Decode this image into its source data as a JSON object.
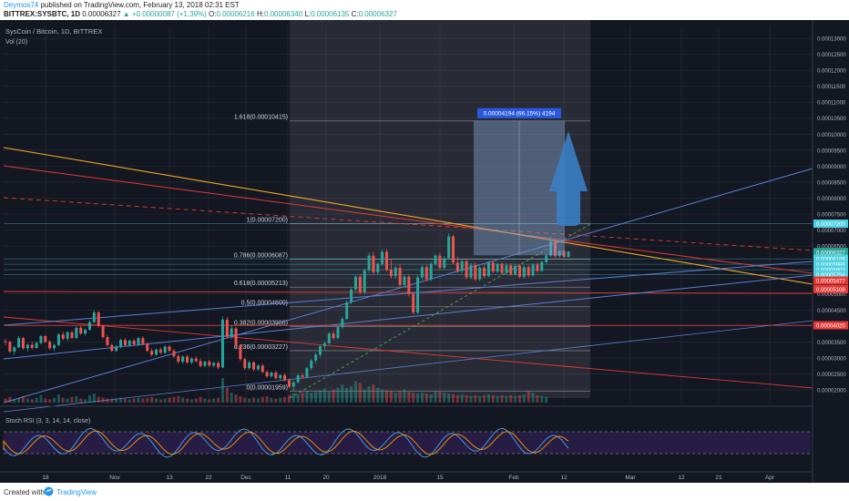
{
  "header": {
    "author": "Deymos74",
    "published": "published on TradingView.com, February 13, 2018 02:31 EST",
    "symbol": "BITTREX:SYSBTC, 1D",
    "last": "0.00006327",
    "change": "+0.00000087 (+1.39%)",
    "o_label": "O:",
    "o": "0.00006216",
    "h_label": "H:",
    "h": "0.00006340",
    "l_label": "L:",
    "l": "0.00006135",
    "c_label": "C:",
    "c": "0.00006327"
  },
  "legend": {
    "title": "SysCoin / Bitcoin, 1D, BITTREX",
    "vol": "Vol (20)",
    "rsi": "Stoch RSI (3, 3, 14, 14, close)"
  },
  "footer": {
    "created": "Created with",
    "brand": "TradingView"
  },
  "colors": {
    "bg": "#131722",
    "up": "#26a69a",
    "down": "#ef5350",
    "grid": "#2a2e39",
    "axis_text": "#b2b5be",
    "fib": "#787b86",
    "trend_red": "#e53935",
    "trend_blue": "#5b7fd6",
    "trend_orange": "#f5a623",
    "cyan": "#4dd0e1",
    "projection": "#7ea0c9",
    "arrow": "#3a7fc5",
    "rsi_fill": "#2c1f4a"
  },
  "chart_data": {
    "type": "candlestick",
    "title": "SysCoin / Bitcoin, 1D, BITTREX",
    "ylim": [
      1.6e-05,
      0.000134
    ],
    "price_ticks": [
      "0.00013000",
      "0.00012500",
      "0.00012000",
      "0.00011500",
      "0.00011000",
      "0.00010500",
      "0.00010000",
      "0.00009500",
      "0.00009000",
      "0.00008500",
      "0.00008000",
      "0.00007500",
      "0.00007000",
      "0.00006500",
      "0.00006000",
      "0.00005500",
      "0.00005000",
      "0.00004500",
      "0.00004000",
      "0.00003500",
      "0.00003000",
      "0.00002500",
      "0.00002000"
    ],
    "price_badges": [
      {
        "label": "0.00007200",
        "v": 7.2e-05,
        "color": "#4dd0e1"
      },
      {
        "label": "0.00006327",
        "v": 6.31e-05,
        "color": "#26a69a"
      },
      {
        "label": "0.00006109",
        "v": 6.1e-05,
        "color": "#4dd0e1"
      },
      {
        "label": "0.00005986",
        "v": 5.93e-05,
        "color": "#4dd0e1"
      },
      {
        "label": "0.00005903",
        "v": 5.76e-05,
        "color": "#4dd0e1"
      },
      {
        "label": "0.00005756",
        "v": 5.6e-05,
        "color": "#4dd0e1"
      },
      {
        "label": "0.00005477",
        "v": 5.42e-05,
        "color": "#e53935"
      },
      {
        "label": "0.00005108",
        "v": 5.15e-05,
        "color": "#e53935"
      },
      {
        "label": "0.00004020",
        "v": 4.02e-05,
        "color": "#e53935"
      }
    ],
    "x_ticks": [
      "18",
      "Nov",
      "13",
      "22",
      "Dec",
      "11",
      "20",
      "2018",
      "15",
      "Feb",
      "12",
      "Mar",
      "12",
      "21",
      "Apr"
    ],
    "fib_levels": [
      {
        "label": "1.618(0.00010415)",
        "v": 0.00010415
      },
      {
        "label": "1(0.00007200)",
        "v": 7.2e-05
      },
      {
        "label": "0.786(0.00006087)",
        "v": 6.087e-05
      },
      {
        "label": "0.618(0.00005213)",
        "v": 5.213e-05
      },
      {
        "label": "0.5(0.00004600)",
        "v": 4.6e-05
      },
      {
        "label": "0.382(0.00003986)",
        "v": 3.986e-05
      },
      {
        "label": "0.236(0.00003227)",
        "v": 3.227e-05
      },
      {
        "label": "0(0.00001959)",
        "v": 1.959e-05
      }
    ],
    "projection": {
      "label": "0.00004194 (66.15%) 4194",
      "from": 6.21e-05,
      "to": 0.00010415
    },
    "candles": [
      [
        3.52e-05,
        3.6e-05,
        3.4e-05,
        3.5e-05
      ],
      [
        3.5e-05,
        3.55e-05,
        3.15e-05,
        3.2e-05
      ],
      [
        3.2e-05,
        3.38e-05,
        3.1e-05,
        3.33e-05
      ],
      [
        3.33e-05,
        3.68e-05,
        3.3e-05,
        3.62e-05
      ],
      [
        3.62e-05,
        3.66e-05,
        3.25e-05,
        3.3e-05
      ],
      [
        3.3e-05,
        3.46e-05,
        3.2e-05,
        3.41e-05
      ],
      [
        3.41e-05,
        3.5e-05,
        3.26e-05,
        3.31e-05
      ],
      [
        3.31e-05,
        3.52e-05,
        3.28e-05,
        3.47e-05
      ],
      [
        3.47e-05,
        3.72e-05,
        3.42e-05,
        3.68e-05
      ],
      [
        3.68e-05,
        3.72e-05,
        3.46e-05,
        3.5e-05
      ],
      [
        3.5e-05,
        3.56e-05,
        3.25e-05,
        3.3e-05
      ],
      [
        3.3e-05,
        3.45e-05,
        3.22e-05,
        3.4e-05
      ],
      [
        3.4e-05,
        3.78e-05,
        3.36e-05,
        3.73e-05
      ],
      [
        3.73e-05,
        3.82e-05,
        3.55e-05,
        3.6e-05
      ],
      [
        3.6e-05,
        3.84e-05,
        3.52e-05,
        3.8e-05
      ],
      [
        3.8e-05,
        3.86e-05,
        3.58e-05,
        3.62e-05
      ],
      [
        3.62e-05,
        3.98e-05,
        3.58e-05,
        3.94e-05
      ],
      [
        3.94e-05,
        4e-05,
        3.72e-05,
        3.76e-05
      ],
      [
        3.76e-05,
        3.92e-05,
        3.7e-05,
        3.88e-05
      ],
      [
        3.88e-05,
        4.18e-05,
        3.85e-05,
        4.12e-05
      ],
      [
        4.12e-05,
        4.48e-05,
        4.08e-05,
        4.42e-05
      ],
      [
        4.42e-05,
        4.46e-05,
        3.95e-05,
        4e-05
      ],
      [
        4e-05,
        4.04e-05,
        3.6e-05,
        3.65e-05
      ],
      [
        3.65e-05,
        3.72e-05,
        3.35e-05,
        3.4e-05
      ],
      [
        3.4e-05,
        3.46e-05,
        3.18e-05,
        3.22e-05
      ],
      [
        3.22e-05,
        3.4e-05,
        3.18e-05,
        3.36e-05
      ],
      [
        3.36e-05,
        3.6e-05,
        3.3e-05,
        3.56e-05
      ],
      [
        3.56e-05,
        3.62e-05,
        3.36e-05,
        3.4e-05
      ],
      [
        3.4e-05,
        3.58e-05,
        3.34e-05,
        3.54e-05
      ],
      [
        3.54e-05,
        3.6e-05,
        3.38e-05,
        3.42e-05
      ],
      [
        3.42e-05,
        3.66e-05,
        3.38e-05,
        3.62e-05
      ],
      [
        3.62e-05,
        3.68e-05,
        3.4e-05,
        3.44e-05
      ],
      [
        3.44e-05,
        3.48e-05,
        3.18e-05,
        3.22e-05
      ],
      [
        3.22e-05,
        3.3e-05,
        3.05e-05,
        3.1e-05
      ],
      [
        3.1e-05,
        3.3e-05,
        3.06e-05,
        3.26e-05
      ],
      [
        3.26e-05,
        3.32e-05,
        3.12e-05,
        3.16e-05
      ],
      [
        3.16e-05,
        3.4e-05,
        3.12e-05,
        3.35e-05
      ],
      [
        3.35e-05,
        3.4e-05,
        3.18e-05,
        3.22e-05
      ],
      [
        3.22e-05,
        3.28e-05,
        3e-05,
        3.05e-05
      ],
      [
        3.05e-05,
        3.12e-05,
        2.82e-05,
        2.88e-05
      ],
      [
        2.88e-05,
        3.08e-05,
        2.82e-05,
        3.04e-05
      ],
      [
        3.04e-05,
        3.1e-05,
        2.82e-05,
        2.86e-05
      ],
      [
        2.86e-05,
        3.02e-05,
        2.8e-05,
        2.98e-05
      ],
      [
        2.98e-05,
        3.05e-05,
        2.85e-05,
        2.9e-05
      ],
      [
        2.9e-05,
        2.98e-05,
        2.7e-05,
        2.75e-05
      ],
      [
        2.75e-05,
        2.92e-05,
        2.7e-05,
        2.88e-05
      ],
      [
        2.88e-05,
        2.94e-05,
        2.72e-05,
        2.76e-05
      ],
      [
        2.76e-05,
        2.88e-05,
        2.7e-05,
        2.84e-05
      ],
      [
        2.84e-05,
        2.9e-05,
        2.65e-05,
        2.7e-05
      ],
      [
        2.7e-05,
        4.3e-05,
        2.68e-05,
        4.2e-05
      ],
      [
        4.2e-05,
        4.28e-05,
        3.6e-05,
        3.68e-05
      ],
      [
        3.68e-05,
        4e-05,
        3.6e-05,
        3.92e-05
      ],
      [
        3.92e-05,
        3.98e-05,
        3.3e-05,
        3.38e-05
      ],
      [
        3.38e-05,
        3.44e-05,
        2.9e-05,
        2.96e-05
      ],
      [
        2.96e-05,
        3e-05,
        2.62e-05,
        2.68e-05
      ],
      [
        2.68e-05,
        2.92e-05,
        2.62e-05,
        2.86e-05
      ],
      [
        2.86e-05,
        2.9e-05,
        2.58e-05,
        2.64e-05
      ],
      [
        2.64e-05,
        2.8e-05,
        2.58e-05,
        2.76e-05
      ],
      [
        2.76e-05,
        2.82e-05,
        2.52e-05,
        2.56e-05
      ],
      [
        2.56e-05,
        2.62e-05,
        2.38e-05,
        2.42e-05
      ],
      [
        2.42e-05,
        2.58e-05,
        2.38e-05,
        2.54e-05
      ],
      [
        2.54e-05,
        2.6e-05,
        2.32e-05,
        2.36e-05
      ],
      [
        2.36e-05,
        2.5e-05,
        2.28e-05,
        2.46e-05
      ],
      [
        2.46e-05,
        2.52e-05,
        2.26e-05,
        2.3e-05
      ],
      [
        2.3e-05,
        2.36e-05,
        2.05e-05,
        2.1e-05
      ],
      [
        2.1e-05,
        2.28e-05,
        1.96e-05,
        2.24e-05
      ],
      [
        2.24e-05,
        2.5e-05,
        2.2e-05,
        2.45e-05
      ],
      [
        2.45e-05,
        2.52e-05,
        2.35e-05,
        2.4e-05
      ],
      [
        2.4e-05,
        2.72e-05,
        2.36e-05,
        2.68e-05
      ],
      [
        2.68e-05,
        2.96e-05,
        2.62e-05,
        2.92e-05
      ],
      [
        2.92e-05,
        3.16e-05,
        2.82e-05,
        3.1e-05
      ],
      [
        3.1e-05,
        3.4e-05,
        3.02e-05,
        3.36e-05
      ],
      [
        3.36e-05,
        3.52e-05,
        3.26e-05,
        3.46e-05
      ],
      [
        3.46e-05,
        3.82e-05,
        3.4e-05,
        3.76e-05
      ],
      [
        3.76e-05,
        3.84e-05,
        3.56e-05,
        3.62e-05
      ],
      [
        3.62e-05,
        4e-05,
        3.58e-05,
        3.96e-05
      ],
      [
        3.96e-05,
        4.28e-05,
        3.9e-05,
        4.22e-05
      ],
      [
        4.22e-05,
        4.8e-05,
        4.18e-05,
        4.74e-05
      ],
      [
        4.74e-05,
        5.2e-05,
        4.68e-05,
        5.14e-05
      ],
      [
        5.14e-05,
        5.6e-05,
        5.08e-05,
        5.54e-05
      ],
      [
        5.54e-05,
        5.62e-05,
        5e-05,
        5.06e-05
      ],
      [
        5.06e-05,
        5.8e-05,
        5e-05,
        5.74e-05
      ],
      [
        5.74e-05,
        6.3e-05,
        5.66e-05,
        6.2e-05
      ],
      [
        6.2e-05,
        6.32e-05,
        5.6e-05,
        5.68e-05
      ],
      [
        5.68e-05,
        6e-05,
        5.6e-05,
        5.94e-05
      ],
      [
        5.94e-05,
        6.4e-05,
        5.86e-05,
        6.32e-05
      ],
      [
        6.32e-05,
        6.4e-05,
        5.7e-05,
        5.76e-05
      ],
      [
        5.76e-05,
        6.1e-05,
        5.48e-05,
        5.56e-05
      ],
      [
        5.56e-05,
        5.88e-05,
        5.48e-05,
        5.82e-05
      ],
      [
        5.82e-05,
        5.92e-05,
        5.2e-05,
        5.28e-05
      ],
      [
        5.28e-05,
        5.6e-05,
        5.2e-05,
        5.54e-05
      ],
      [
        5.54e-05,
        5.6e-05,
        4.92e-05,
        5e-05
      ],
      [
        5e-05,
        5.04e-05,
        4.36e-05,
        4.42e-05
      ],
      [
        4.42e-05,
        5.6e-05,
        4.36e-05,
        5.52e-05
      ],
      [
        5.52e-05,
        5.9e-05,
        5.45e-05,
        5.84e-05
      ],
      [
        5.84e-05,
        5.92e-05,
        5.4e-05,
        5.46e-05
      ],
      [
        5.46e-05,
        6e-05,
        5.4e-05,
        5.94e-05
      ],
      [
        5.94e-05,
        6.26e-05,
        5.88e-05,
        6.2e-05
      ],
      [
        6.2e-05,
        6.3e-05,
        5.75e-05,
        5.82e-05
      ],
      [
        5.82e-05,
        6.18e-05,
        5.76e-05,
        6.12e-05
      ],
      [
        6.12e-05,
        6.9e-05,
        6.06e-05,
        6.8e-05
      ],
      [
        6.8e-05,
        6.86e-05,
        5.92e-05,
        5.98e-05
      ],
      [
        5.98e-05,
        6.16e-05,
        5.66e-05,
        5.72e-05
      ],
      [
        5.72e-05,
        6.08e-05,
        5.65e-05,
        6.02e-05
      ],
      [
        6.02e-05,
        6.1e-05,
        5.45e-05,
        5.52e-05
      ],
      [
        5.52e-05,
        5.96e-05,
        5.46e-05,
        5.9e-05
      ],
      [
        5.9e-05,
        5.98e-05,
        5.4e-05,
        5.46e-05
      ],
      [
        5.46e-05,
        5.88e-05,
        5.4e-05,
        5.82e-05
      ],
      [
        5.82e-05,
        5.9e-05,
        5.5e-05,
        5.56e-05
      ],
      [
        5.56e-05,
        6.04e-05,
        5.52e-05,
        5.98e-05
      ],
      [
        5.98e-05,
        6.04e-05,
        5.65e-05,
        5.7e-05
      ],
      [
        5.7e-05,
        5.98e-05,
        5.66e-05,
        5.94e-05
      ],
      [
        5.94e-05,
        6e-05,
        5.6e-05,
        5.66e-05
      ],
      [
        5.66e-05,
        5.96e-05,
        5.6e-05,
        5.9e-05
      ],
      [
        5.9e-05,
        5.96e-05,
        5.56e-05,
        5.62e-05
      ],
      [
        5.62e-05,
        5.92e-05,
        5.58e-05,
        5.88e-05
      ],
      [
        5.88e-05,
        5.94e-05,
        5.48e-05,
        5.54e-05
      ],
      [
        5.54e-05,
        5.9e-05,
        5.48e-05,
        5.84e-05
      ],
      [
        5.84e-05,
        5.9e-05,
        5.52e-05,
        5.58e-05
      ],
      [
        5.58e-05,
        5.96e-05,
        5.54e-05,
        5.92e-05
      ],
      [
        5.92e-05,
        5.98e-05,
        5.66e-05,
        5.72e-05
      ],
      [
        5.72e-05,
        6.04e-05,
        5.68e-05,
        6e-05
      ],
      [
        6e-05,
        6.26e-05,
        5.94e-05,
        6.2e-05
      ],
      [
        6.2e-05,
        6.8e-05,
        6.15e-05,
        6.64e-05
      ],
      [
        6.64e-05,
        6.7e-05,
        6.12e-05,
        6.18e-05
      ],
      [
        6.18e-05,
        6.4e-05,
        6.12e-05,
        6.34e-05
      ],
      [
        6.34e-05,
        6.4e-05,
        6.12e-05,
        6.16e-05
      ],
      [
        6.16e-05,
        6.34e-05,
        6.13e-05,
        6.33e-05
      ]
    ],
    "volume": [
      5,
      7,
      4,
      6,
      8,
      5,
      4,
      6,
      9,
      5,
      4,
      6,
      10,
      6,
      5,
      7,
      8,
      5,
      4,
      9,
      11,
      7,
      6,
      5,
      4,
      5,
      6,
      5,
      4,
      5,
      6,
      5,
      6,
      7,
      5,
      4,
      5,
      6,
      7,
      8,
      6,
      5,
      4,
      5,
      7,
      5,
      4,
      5,
      6,
      30,
      18,
      12,
      10,
      8,
      6,
      5,
      6,
      5,
      7,
      8,
      6,
      5,
      6,
      7,
      9,
      11,
      10,
      12,
      14,
      12,
      13,
      15,
      17,
      13,
      16,
      18,
      22,
      18,
      20,
      26,
      24,
      16,
      20,
      22,
      18,
      16,
      15,
      14,
      12,
      14,
      16,
      13,
      12,
      11,
      12,
      11,
      10,
      14,
      13,
      12,
      11,
      10,
      9,
      10,
      9,
      8,
      9,
      8,
      9,
      10,
      9,
      8,
      9,
      8,
      9,
      8,
      9,
      10,
      14,
      12,
      9,
      8,
      7
    ]
  }
}
